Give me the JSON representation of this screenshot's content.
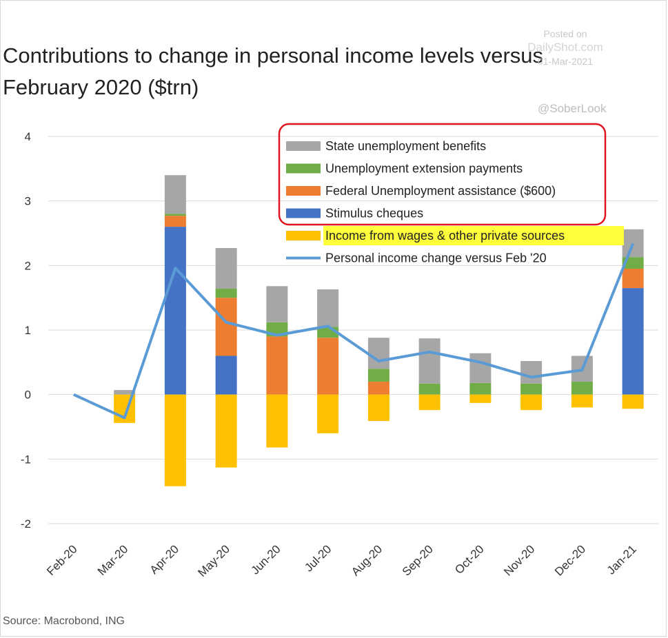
{
  "header": {
    "title": "Contributions to change in personal income levels versus\nFebruary 2020 ($trn)"
  },
  "watermark": {
    "posted": "Posted on",
    "site": "DailyShot.com",
    "date": "01-Mar-2021",
    "handle": "@SoberLook"
  },
  "footer": {
    "source": "Source: Macrobond, ING"
  },
  "colors": {
    "state": "#a6a6a6",
    "extension": "#70ad47",
    "federal": "#ed7d31",
    "stimulus": "#4472c4",
    "wages": "#ffc000",
    "line": "#5b9bd5",
    "legend_box": "#e0141e",
    "highlight": "#ffff3c"
  },
  "chart_data": {
    "type": "bar",
    "stacked": true,
    "categories": [
      "Feb-20",
      "Mar-20",
      "Apr-20",
      "May-20",
      "Jun-20",
      "Jul-20",
      "Aug-20",
      "Sep-20",
      "Oct-20",
      "Nov-20",
      "Dec-20",
      "Jan-21"
    ],
    "ylim": [
      -2,
      4
    ],
    "yticks": [
      4,
      3,
      2,
      1,
      0,
      -1,
      -2
    ],
    "grid": true,
    "legend_position": "top-right",
    "series": [
      {
        "key": "stimulus",
        "name": "Stimulus cheques",
        "kind": "bar",
        "values": [
          0,
          0,
          2.6,
          0.6,
          0,
          0,
          0,
          0,
          0,
          0,
          0,
          1.65
        ]
      },
      {
        "key": "federal",
        "name": "Federal Unemployment assistance ($600)",
        "kind": "bar",
        "values": [
          0,
          0,
          0.17,
          0.9,
          0.9,
          0.88,
          0.2,
          0,
          0,
          0,
          0,
          0.3
        ]
      },
      {
        "key": "extension",
        "name": "Unemployment extension payments",
        "kind": "bar",
        "values": [
          0,
          0,
          0.03,
          0.14,
          0.22,
          0.17,
          0.2,
          0.17,
          0.18,
          0.17,
          0.2,
          0.18
        ]
      },
      {
        "key": "state",
        "name": "State unemployment benefits",
        "kind": "bar",
        "values": [
          0,
          0.07,
          0.6,
          0.63,
          0.56,
          0.58,
          0.48,
          0.7,
          0.46,
          0.35,
          0.4,
          0.43
        ]
      },
      {
        "key": "wages",
        "name": "Income from wages & other private sources",
        "kind": "bar",
        "values": [
          0,
          -0.44,
          -1.42,
          -1.13,
          -0.82,
          -0.6,
          -0.41,
          -0.24,
          -0.13,
          -0.24,
          -0.2,
          -0.22
        ]
      },
      {
        "key": "line",
        "name": "Personal income change versus Feb '20",
        "kind": "line",
        "values": [
          0,
          -0.36,
          1.96,
          1.12,
          0.92,
          1.06,
          0.52,
          0.66,
          0.5,
          0.27,
          0.38,
          2.34
        ]
      }
    ],
    "legend_order": [
      "state",
      "extension",
      "federal",
      "stimulus",
      "wages",
      "line"
    ]
  }
}
